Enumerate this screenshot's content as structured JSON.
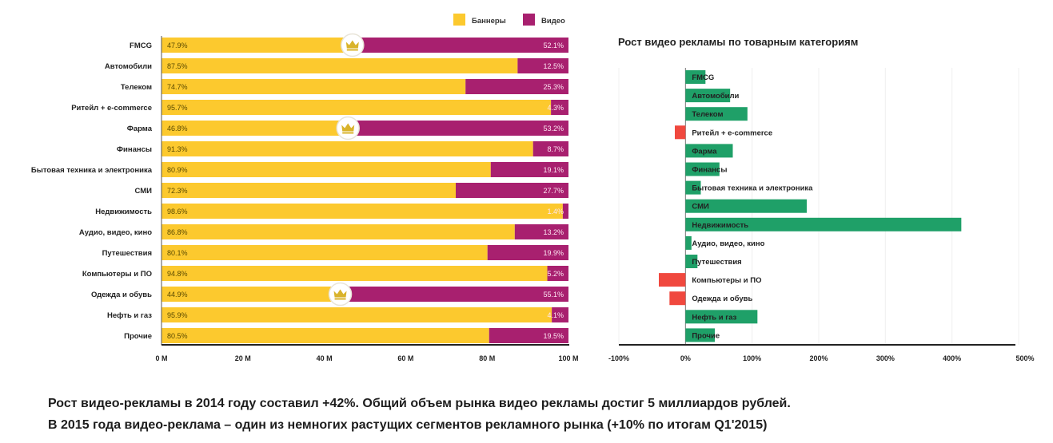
{
  "chart_data": [
    {
      "type": "bar",
      "orientation": "horizontal",
      "stacked": true,
      "title": "",
      "xlabel": "",
      "ylabel": "",
      "xlim": [
        0,
        100
      ],
      "x_tick_labels": [
        "0 M",
        "20 M",
        "40 M",
        "60 M",
        "80 M",
        "100 M"
      ],
      "x_ticks": [
        0,
        20,
        40,
        60,
        80,
        100
      ],
      "legend": {
        "position": "top-right",
        "entries": [
          "Баннеры",
          "Видео"
        ]
      },
      "colors": {
        "Баннеры": "#FCC92E",
        "Видео": "#A8206F"
      },
      "categories": [
        "FMCG",
        "Автомобили",
        "Телеком",
        "Ритейл + e-commerce",
        "Фарма",
        "Финансы",
        "Бытовая техника и электроника",
        "СМИ",
        "Недвижимость",
        "Аудио, видео, кино",
        "Путешествия",
        "Компьютеры и ПО",
        "Одежда и обувь",
        "Нефть и газ",
        "Прочие"
      ],
      "series": [
        {
          "name": "Баннеры",
          "values": [
            47.9,
            87.5,
            74.7,
            95.7,
            46.8,
            91.3,
            80.9,
            72.3,
            98.6,
            86.8,
            80.1,
            94.8,
            44.9,
            95.9,
            80.5
          ],
          "labels": [
            "47.9%",
            "87.5%",
            "74.7%",
            "95.7%",
            "46.8%",
            "91.3%",
            "80.9%",
            "72.3%",
            "98.6%",
            "86.8%",
            "80.1%",
            "94.8%",
            "44.9%",
            "95.9%",
            "80.5%"
          ]
        },
        {
          "name": "Видео",
          "values": [
            52.1,
            12.5,
            25.3,
            4.3,
            53.2,
            8.7,
            19.1,
            27.7,
            1.4,
            13.2,
            19.9,
            5.2,
            55.1,
            4.1,
            19.5
          ],
          "labels": [
            "52.1%",
            "12.5%",
            "25.3%",
            "4.3%",
            "53.2%",
            "8.7%",
            "19.1%",
            "27.7%",
            "1.4%",
            "13.2%",
            "19.9%",
            "5.2%",
            "55.1%",
            "4.1%",
            "19.5%"
          ]
        }
      ],
      "annotations": [
        {
          "category": "FMCG",
          "icon": "crown-icon"
        },
        {
          "category": "Фарма",
          "icon": "crown-icon"
        },
        {
          "category": "Одежда и обувь",
          "icon": "crown-icon"
        }
      ]
    },
    {
      "type": "bar",
      "orientation": "horizontal",
      "title": "Рост видео рекламы по товарным категориям",
      "xlabel": "",
      "ylabel": "",
      "xlim": [
        -100,
        500
      ],
      "x_ticks": [
        -100,
        0,
        100,
        200,
        300,
        400,
        500
      ],
      "x_tick_labels": [
        "-100%",
        "0%",
        "100%",
        "200%",
        "300%",
        "400%",
        "500%"
      ],
      "grid": true,
      "colors": {
        "positive": "#1FA068",
        "negative": "#F0483E"
      },
      "categories": [
        "FMCG",
        "Автомобили",
        "Телеком",
        "Ритейл + e-commerce",
        "Фарма",
        "Финансы",
        "Бытовая техника и электроника",
        "СМИ",
        "Недвижимость",
        "Аудио, видео, кино",
        "Путешествия",
        "Компьютеры и ПО",
        "Одежда и обувь",
        "Нефть и газ",
        "Прочие"
      ],
      "values": [
        30,
        67,
        93,
        -16,
        71,
        51,
        23,
        182,
        414,
        9,
        18,
        -40,
        -24,
        108,
        44
      ]
    }
  ],
  "footer": {
    "line1": "Рост видео-рекламы в 2014 году составил +42%. Общий объем рынка видео рекламы достиг 5 миллиардов рублей.",
    "line2": "В 2015 года видео-реклама – один из немногих растущих сегментов рекламного рынка (+10% по итогам Q1'2015)"
  }
}
